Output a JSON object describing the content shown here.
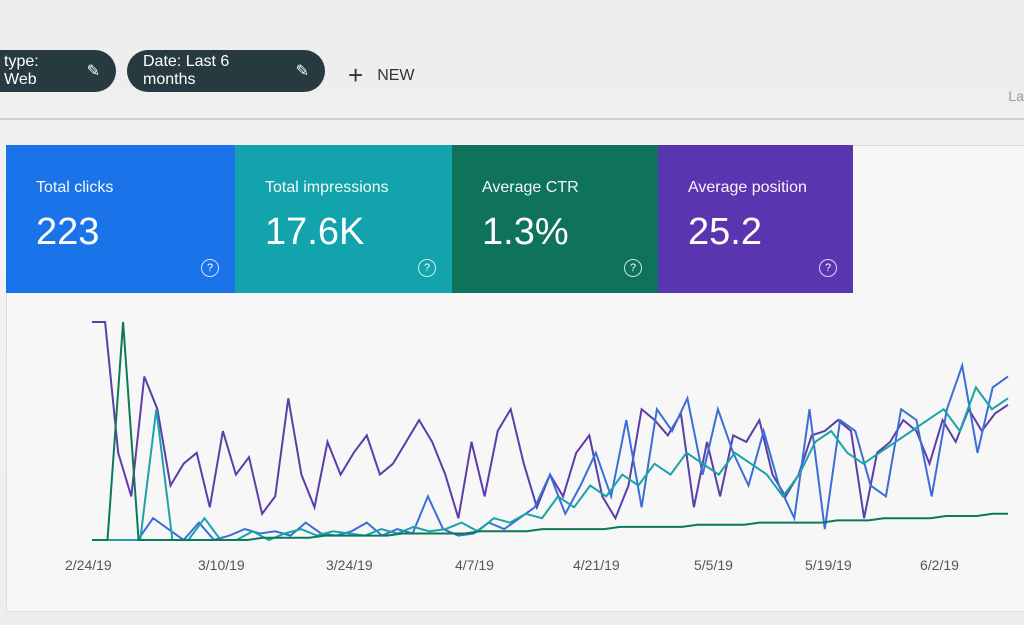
{
  "filters": [
    {
      "label": "type: Web",
      "icon": "pencil-icon"
    },
    {
      "label": "Date: Last 6 months",
      "icon": "pencil-icon"
    }
  ],
  "new_button": {
    "label": "NEW",
    "icon": "plus-icon"
  },
  "last_label": "La",
  "metrics": [
    {
      "title": "Total clicks",
      "value": "223",
      "color": "#1a73e8"
    },
    {
      "title": "Total impressions",
      "value": "17.6K",
      "color": "#12a3ad"
    },
    {
      "title": "Average CTR",
      "value": "1.3%",
      "color": "#0e735a"
    },
    {
      "title": "Average position",
      "value": "25.2",
      "color": "#5a35b0"
    }
  ],
  "chart_data": {
    "type": "line",
    "x_ticks": [
      "2/24/19",
      "3/10/19",
      "3/24/19",
      "4/7/19",
      "4/21/19",
      "5/5/19",
      "5/19/19",
      "6/2/19"
    ],
    "grid": false,
    "series": [
      {
        "metric": "Average position",
        "color": "#5b3ea8",
        "values": [
          100,
          100,
          40,
          20,
          75,
          60,
          25,
          35,
          40,
          15,
          50,
          30,
          38,
          12,
          20,
          65,
          30,
          15,
          45,
          30,
          40,
          48,
          30,
          35,
          45,
          55,
          45,
          30,
          10,
          45,
          20,
          50,
          60,
          35,
          15,
          30,
          20,
          40,
          48,
          20,
          10,
          25,
          60,
          55,
          48,
          58,
          15,
          45,
          20,
          48,
          45,
          55,
          30,
          20,
          30,
          48,
          50,
          55,
          50,
          10,
          40,
          45,
          55,
          50,
          35,
          55,
          45,
          60,
          50,
          58,
          62
        ]
      },
      {
        "metric": "Total clicks",
        "color": "#3b6fd6",
        "values": [
          0,
          0,
          0,
          0,
          10,
          5,
          0,
          8,
          0,
          2,
          5,
          3,
          4,
          2,
          8,
          3,
          2,
          4,
          8,
          2,
          5,
          3,
          20,
          5,
          2,
          3,
          8,
          5,
          10,
          15,
          30,
          12,
          25,
          40,
          20,
          55,
          15,
          60,
          50,
          65,
          30,
          60,
          40,
          25,
          50,
          25,
          10,
          60,
          5,
          55,
          50,
          25,
          20,
          60,
          55,
          20,
          60,
          80,
          40,
          70,
          75
        ]
      },
      {
        "metric": "Total impressions",
        "color": "#1aa3a8",
        "values": [
          0,
          0,
          0,
          0,
          60,
          0,
          0,
          10,
          0,
          0,
          4,
          0,
          3,
          5,
          2,
          4,
          3,
          2,
          5,
          3,
          6,
          4,
          5,
          8,
          4,
          10,
          8,
          12,
          10,
          20,
          15,
          25,
          20,
          30,
          25,
          35,
          30,
          40,
          35,
          30,
          40,
          35,
          30,
          20,
          30,
          45,
          50,
          40,
          35,
          40,
          45,
          50,
          55,
          60,
          50,
          70,
          60,
          65
        ]
      },
      {
        "metric": "Average CTR",
        "color": "#0c7a58",
        "values": [
          0,
          0,
          100,
          0,
          0,
          0,
          0,
          0,
          0,
          0,
          0,
          1,
          1,
          1,
          1,
          2,
          2,
          2,
          2,
          2,
          3,
          3,
          3,
          3,
          3,
          4,
          4,
          4,
          4,
          5,
          5,
          5,
          5,
          5,
          6,
          6,
          6,
          6,
          6,
          7,
          7,
          7,
          7,
          8,
          8,
          8,
          8,
          8,
          9,
          9,
          9,
          10,
          10,
          10,
          10,
          11,
          11,
          11,
          12,
          12
        ]
      }
    ]
  }
}
